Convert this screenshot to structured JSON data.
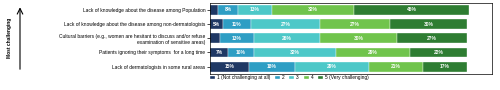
{
  "chart_data": {
    "type": "bar",
    "orientation": "horizontal",
    "stacked": true,
    "data_labels": true,
    "tick_labels": "y",
    "categories": [
      "Lack of knowledge about the disease among Population",
      "Lack of knowledge about the disease among non-dermatologists",
      "Cultural barriers (e.g., women are hesitant to discuss and/or refuse\nexamination of sensitive areas)",
      "Patients ignoring their symptoms  for a long time",
      "Lack of dermatologists in some rural areas"
    ],
    "series": [
      {
        "name": "1 (Not challenging at all)",
        "color": "#1f3864",
        "values": [
          3,
          5,
          4,
          7,
          15
        ],
        "value_labels": [
          null,
          "5%",
          null,
          "7%",
          "15%"
        ]
      },
      {
        "name": "2",
        "color": "#2e9ec4",
        "values": [
          8,
          11,
          13,
          10,
          18
        ],
        "value_labels": [
          "8%",
          "11%",
          "13%",
          "10%",
          "18%"
        ]
      },
      {
        "name": "3",
        "color": "#4dc8c8",
        "values": [
          13,
          27,
          26,
          32,
          29
        ],
        "value_labels": [
          "13%",
          "27%",
          "26%",
          "32%",
          "29%"
        ]
      },
      {
        "name": "4",
        "color": "#70c44c",
        "values": [
          32,
          27,
          30,
          29,
          21
        ],
        "value_labels": [
          "32%",
          "27%",
          "30%",
          "29%",
          "21%"
        ]
      },
      {
        "name": "5 (Very challenging)",
        "color": "#2e7d32",
        "values": [
          45,
          30,
          27,
          22,
          17
        ],
        "value_labels": [
          "45%",
          "30%",
          "27%",
          "22%",
          "17%"
        ]
      }
    ],
    "xlim": [
      0,
      110
    ],
    "xticks": [],
    "legend": "upper left",
    "annotations": [
      {
        "text": "Most challenging"
      }
    ]
  }
}
